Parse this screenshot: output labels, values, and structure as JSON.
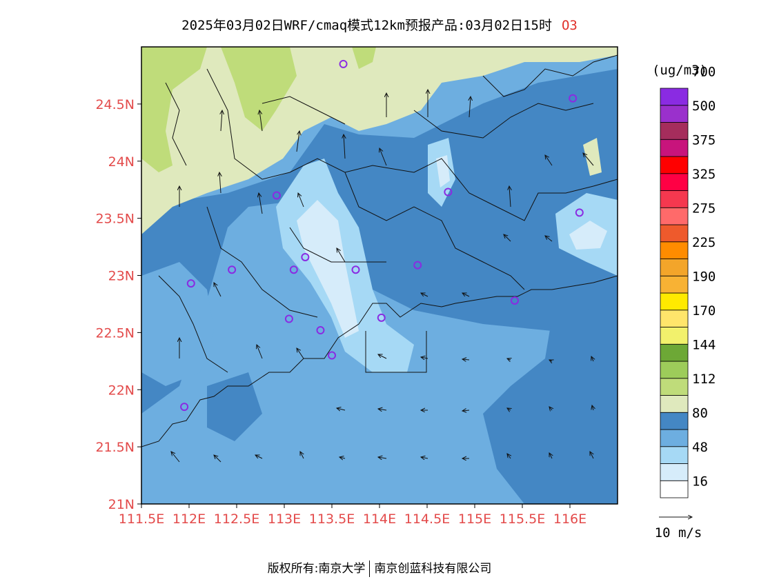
{
  "header": {
    "title": "2025年03月02日WRF/cmaq模式12km预报产品:03月02日15时",
    "species": "O3"
  },
  "map": {
    "lon_range": [
      111.5,
      116.5
    ],
    "lat_range": [
      21.0,
      25.0
    ],
    "lon_ticks": [
      {
        "v": 111.5,
        "label": "111.5E"
      },
      {
        "v": 112,
        "label": "112E"
      },
      {
        "v": 112.5,
        "label": "112.5E"
      },
      {
        "v": 113,
        "label": "113E"
      },
      {
        "v": 113.5,
        "label": "113.5E"
      },
      {
        "v": 114,
        "label": "114E"
      },
      {
        "v": 114.5,
        "label": "114.5E"
      },
      {
        "v": 115,
        "label": "115E"
      },
      {
        "v": 115.5,
        "label": "115.5E"
      },
      {
        "v": 116,
        "label": "116E"
      }
    ],
    "lat_ticks": [
      {
        "v": 21,
        "label": "21N"
      },
      {
        "v": 21.5,
        "label": "21.5N"
      },
      {
        "v": 22,
        "label": "22N"
      },
      {
        "v": 22.5,
        "label": "22.5N"
      },
      {
        "v": 23,
        "label": "23N"
      },
      {
        "v": 23.5,
        "label": "23.5N"
      },
      {
        "v": 24,
        "label": "24N"
      },
      {
        "v": 24.5,
        "label": "24.5N"
      }
    ],
    "stations": [
      [
        113.62,
        24.85
      ],
      [
        116.03,
        24.55
      ],
      [
        112.92,
        23.7
      ],
      [
        114.72,
        23.73
      ],
      [
        116.1,
        23.55
      ],
      [
        113.22,
        23.16
      ],
      [
        112.45,
        23.05
      ],
      [
        113.1,
        23.05
      ],
      [
        113.75,
        23.05
      ],
      [
        114.4,
        23.09
      ],
      [
        112.02,
        22.93
      ],
      [
        115.42,
        22.78
      ],
      [
        113.05,
        22.62
      ],
      [
        113.38,
        22.52
      ],
      [
        114.02,
        22.63
      ],
      [
        113.5,
        22.3
      ],
      [
        111.95,
        21.85
      ]
    ],
    "wind_reference": "10 m/s"
  },
  "colorbar": {
    "unit": "(ug/m3)",
    "colors": [
      "#ffffff",
      "#d6ecfa",
      "#a6d9f5",
      "#6daee0",
      "#4487c4",
      "#dfe9bd",
      "#bfdc7a",
      "#9dcc5a",
      "#6da836",
      "#f2f16c",
      "#ffe56b",
      "#ffea00",
      "#f8b234",
      "#f3a52a",
      "#ff8c00",
      "#ee5a2c",
      "#ff6a6a",
      "#f5384f",
      "#ff0044",
      "#ff0000",
      "#c8147c",
      "#a52d5c",
      "#9a30cc",
      "#8a2be2"
    ],
    "labels": [
      {
        "edge": 1,
        "text": "16"
      },
      {
        "edge": 3,
        "text": "48"
      },
      {
        "edge": 5,
        "text": "80"
      },
      {
        "edge": 7,
        "text": "112"
      },
      {
        "edge": 9,
        "text": "144"
      },
      {
        "edge": 11,
        "text": "170"
      },
      {
        "edge": 13,
        "text": "190"
      },
      {
        "edge": 15,
        "text": "225"
      },
      {
        "edge": 17,
        "text": "275"
      },
      {
        "edge": 19,
        "text": "325"
      },
      {
        "edge": 21,
        "text": "375"
      },
      {
        "edge": 23,
        "text": "500"
      },
      {
        "edge": 25,
        "text": "700"
      }
    ]
  },
  "footer": {
    "left": "版权所有:南京大学",
    "right": "南京创蓝科技有限公司"
  }
}
